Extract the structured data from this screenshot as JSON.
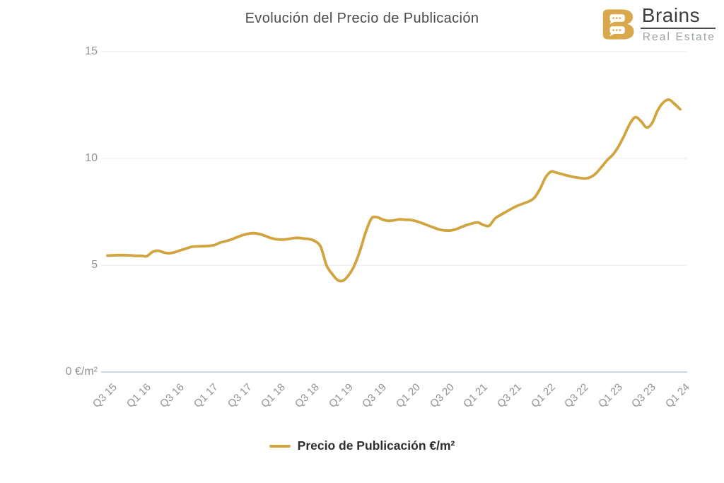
{
  "title": "Evolución del Precio de Publicación",
  "logo": {
    "brand": "Brains",
    "subtitle": "Real Estate",
    "icon": "chat-bubbles-b-logo",
    "gold": "#d9a84c"
  },
  "legend": {
    "label": "Precio de Publicación €/m²",
    "color": "#d2a43f"
  },
  "colors": {
    "grid_line": "#e8e8e8",
    "axis_line": "#ccd9e2",
    "title_text": "#4a4a4a",
    "axis_text": "#8f9396",
    "legend_text": "#2e2e2e"
  },
  "chart_data": {
    "type": "line",
    "title": "Evolución del Precio de Publicación",
    "x_tick_labels": [
      "Q3 15",
      "Q1 16",
      "Q3 16",
      "Q1 17",
      "Q3 17",
      "Q1 18",
      "Q3 18",
      "Q1 19",
      "Q3 19",
      "Q1 20",
      "Q3 20",
      "Q1 21",
      "Q3 21",
      "Q1 22",
      "Q3 22",
      "Q1 23",
      "Q3 23",
      "Q1 24"
    ],
    "x_resolution": "monthly",
    "x_start": "2015-07",
    "x_end": "2024-01",
    "y_axis": {
      "range": [
        0,
        15
      ],
      "ticks": [
        {
          "value": 0,
          "label": "0 €/m²"
        },
        {
          "value": 5,
          "label": "5"
        },
        {
          "value": 10,
          "label": "10"
        },
        {
          "value": 15,
          "label": "15"
        }
      ]
    },
    "grid": true,
    "legend_position": "bottom",
    "series": [
      {
        "name": "Precio de Publicación €/m²",
        "color": "#d2a43f",
        "values": [
          5.45,
          5.46,
          5.47,
          5.47,
          5.46,
          5.44,
          5.44,
          5.42,
          5.62,
          5.68,
          5.6,
          5.56,
          5.61,
          5.7,
          5.78,
          5.86,
          5.88,
          5.89,
          5.9,
          5.94,
          6.05,
          6.12,
          6.2,
          6.3,
          6.4,
          6.47,
          6.5,
          6.46,
          6.38,
          6.28,
          6.22,
          6.2,
          6.22,
          6.26,
          6.28,
          6.25,
          6.22,
          6.12,
          5.85,
          5.0,
          4.6,
          4.3,
          4.28,
          4.55,
          5.0,
          5.7,
          6.55,
          7.18,
          7.25,
          7.14,
          7.08,
          7.1,
          7.15,
          7.13,
          7.12,
          7.06,
          6.97,
          6.87,
          6.77,
          6.68,
          6.63,
          6.62,
          6.68,
          6.78,
          6.88,
          6.96,
          7.0,
          6.88,
          6.85,
          7.18,
          7.35,
          7.5,
          7.65,
          7.78,
          7.88,
          7.98,
          8.15,
          8.55,
          9.1,
          9.38,
          9.33,
          9.26,
          9.19,
          9.13,
          9.09,
          9.06,
          9.12,
          9.3,
          9.6,
          9.92,
          10.17,
          10.55,
          11.05,
          11.6,
          11.93,
          11.75,
          11.45,
          11.65,
          12.25,
          12.62,
          12.75,
          12.55,
          12.3
        ]
      }
    ]
  }
}
